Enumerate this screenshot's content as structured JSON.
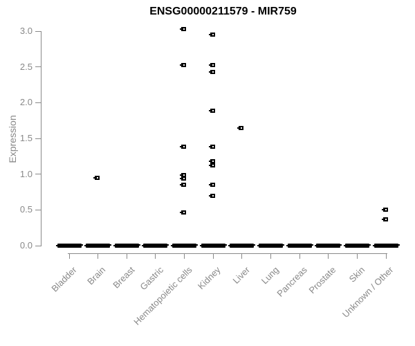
{
  "chart_data": {
    "type": "scatter",
    "title": "ENSG00000211579 - MIR759",
    "xlabel": "",
    "ylabel": "Expression",
    "ylim": [
      0.0,
      3.0
    ],
    "yticks": [
      0.0,
      0.5,
      1.0,
      1.5,
      2.0,
      2.5,
      3.0
    ],
    "ytick_labels": [
      "0.0",
      "0.5",
      "1.0",
      "1.5",
      "2.0",
      "2.5",
      "3.0"
    ],
    "categories": [
      "Bladder",
      "Brain",
      "Breast",
      "Gastric",
      "Hematopoietic cells",
      "Kidney",
      "Liver",
      "Lung",
      "Pancreas",
      "Prostate",
      "Skin",
      "Unknown / Other"
    ],
    "zero_cluster_value": 0.0,
    "zero_cluster_categories": [
      "Bladder",
      "Brain",
      "Breast",
      "Gastric",
      "Hematopoietic cells",
      "Kidney",
      "Liver",
      "Lung",
      "Pancreas",
      "Prostate",
      "Skin",
      "Unknown / Other"
    ],
    "points": [
      {
        "category": "Brain",
        "value": 0.95
      },
      {
        "category": "Hematopoietic cells",
        "value": 3.03
      },
      {
        "category": "Hematopoietic cells",
        "value": 2.53
      },
      {
        "category": "Hematopoietic cells",
        "value": 1.38
      },
      {
        "category": "Hematopoietic cells",
        "value": 0.99
      },
      {
        "category": "Hematopoietic cells",
        "value": 0.94
      },
      {
        "category": "Hematopoietic cells",
        "value": 0.85
      },
      {
        "category": "Hematopoietic cells",
        "value": 0.46
      },
      {
        "category": "Kidney",
        "value": 2.95
      },
      {
        "category": "Kidney",
        "value": 2.53
      },
      {
        "category": "Kidney",
        "value": 2.43
      },
      {
        "category": "Kidney",
        "value": 1.89
      },
      {
        "category": "Kidney",
        "value": 1.38
      },
      {
        "category": "Kidney",
        "value": 1.18
      },
      {
        "category": "Kidney",
        "value": 1.12
      },
      {
        "category": "Kidney",
        "value": 0.85
      },
      {
        "category": "Kidney",
        "value": 0.7
      },
      {
        "category": "Liver",
        "value": 1.65
      },
      {
        "category": "Unknown / Other",
        "value": 0.5
      },
      {
        "category": "Unknown / Other",
        "value": 0.37
      }
    ],
    "legend": null,
    "grid": false,
    "colors": {
      "marker": "#000000",
      "axis": "#888888",
      "title": "#000000",
      "background": "#ffffff"
    }
  }
}
